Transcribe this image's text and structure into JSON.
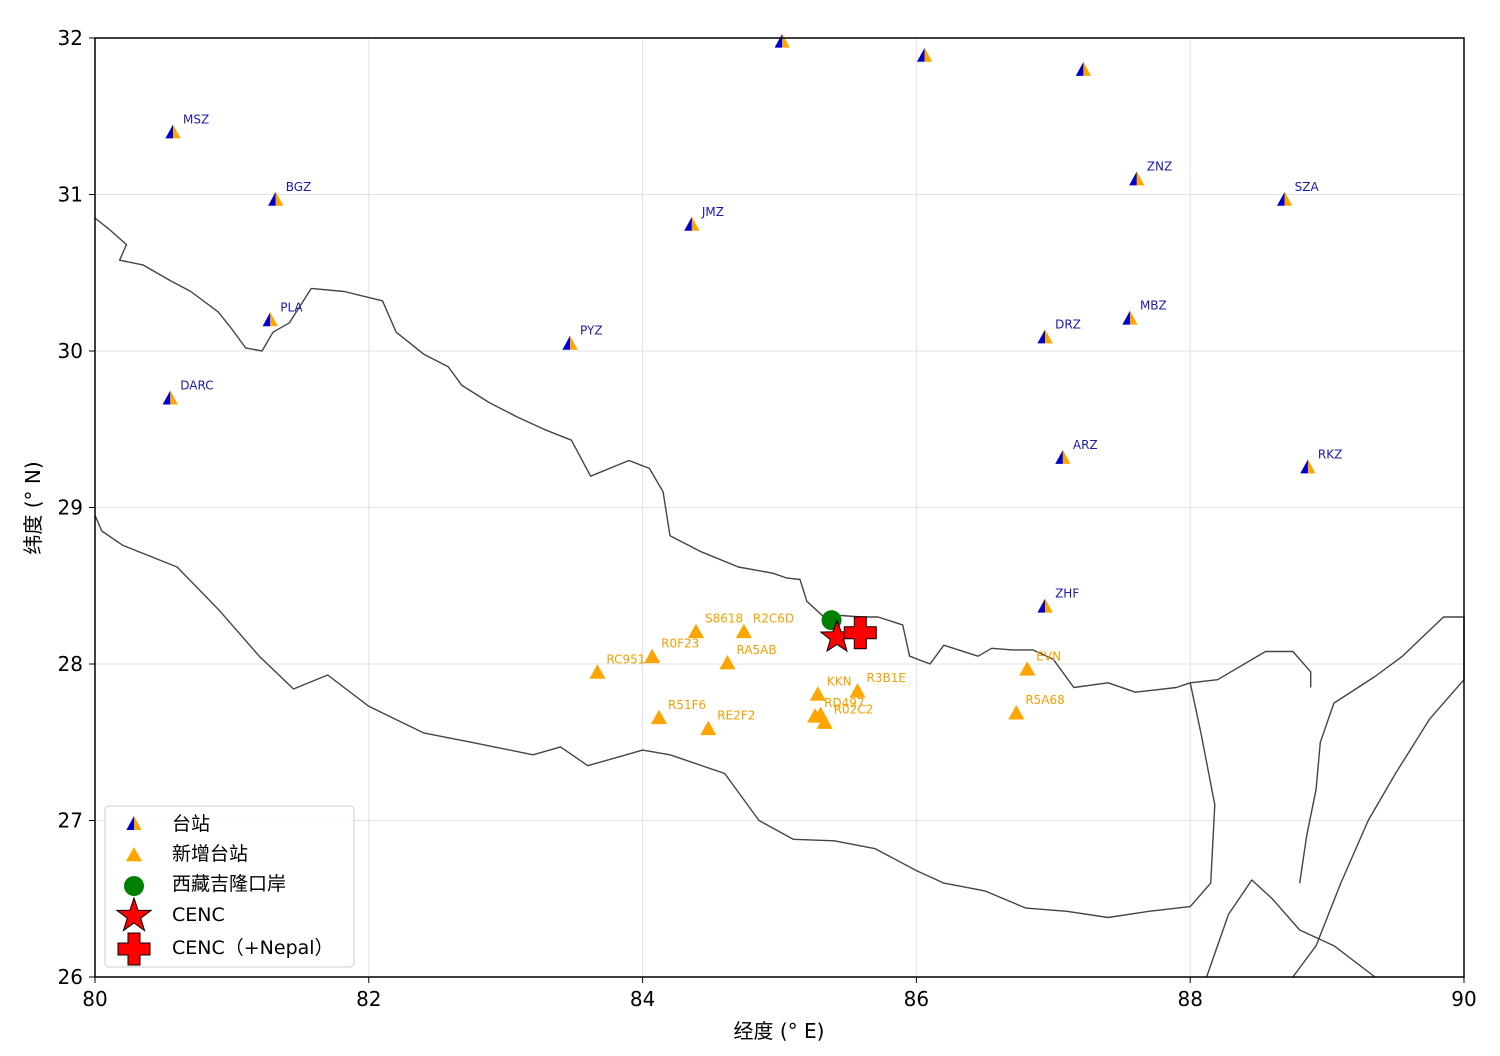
{
  "axes": {
    "xlabel": "经度 (° E)",
    "ylabel": "纬度 (° N)",
    "xlim": [
      80,
      90
    ],
    "ylim": [
      26,
      32
    ],
    "xticks": [
      "80",
      "82",
      "84",
      "86",
      "88",
      "90"
    ],
    "yticks": [
      "26",
      "27",
      "28",
      "29",
      "30",
      "31",
      "32"
    ],
    "grid": true
  },
  "colors": {
    "old_station_left": "#0000cc",
    "old_station_right": "#ffa500",
    "new_station": "#ffa500",
    "port": "#008000",
    "cenc": "#ff0000",
    "cenc_nepal": "#ff0000",
    "border": "#444444",
    "old_label": "#1a1aaa",
    "new_label": "#f5a000"
  },
  "legend": {
    "placement": "lower-left",
    "items": [
      "台站",
      "新增台站",
      "西藏吉隆口岸",
      "CENC",
      "CENC（+Nepal）"
    ]
  },
  "chart_data": {
    "type": "scatter",
    "series": [
      {
        "name": "台站",
        "marker": "half-triangle",
        "points": [
          {
            "label": "MSZ",
            "lon": 80.57,
            "lat": 31.39
          },
          {
            "label": "BGZ",
            "lon": 81.32,
            "lat": 30.96
          },
          {
            "label": "JMZ",
            "lon": 84.36,
            "lat": 30.8
          },
          {
            "label": "PLA",
            "lon": 81.28,
            "lat": 30.19
          },
          {
            "label": "PYZ",
            "lon": 83.47,
            "lat": 30.04
          },
          {
            "label": "DARC",
            "lon": 80.55,
            "lat": 29.69
          },
          {
            "label": "ZNZ",
            "lon": 87.61,
            "lat": 31.09
          },
          {
            "label": "SZA",
            "lon": 88.69,
            "lat": 30.96
          },
          {
            "label": "MBZ",
            "lon": 87.56,
            "lat": 30.2
          },
          {
            "label": "DRZ",
            "lon": 86.94,
            "lat": 30.08
          },
          {
            "label": "ARZ",
            "lon": 87.07,
            "lat": 29.31
          },
          {
            "label": "RKZ",
            "lon": 88.86,
            "lat": 29.25
          },
          {
            "label": "ZHF",
            "lon": 86.94,
            "lat": 28.36
          },
          {
            "label": "",
            "lon": 85.02,
            "lat": 31.97
          },
          {
            "label": "",
            "lon": 86.06,
            "lat": 31.88
          },
          {
            "label": "",
            "lon": 87.22,
            "lat": 31.79
          }
        ]
      },
      {
        "name": "新增台站",
        "marker": "triangle",
        "points": [
          {
            "label": "S8618",
            "lon": 84.39,
            "lat": 28.2
          },
          {
            "label": "R2C6D",
            "lon": 84.74,
            "lat": 28.2
          },
          {
            "label": "R0F23",
            "lon": 84.07,
            "lat": 28.04
          },
          {
            "label": "RC951",
            "lon": 83.67,
            "lat": 27.94
          },
          {
            "label": "RA5AB",
            "lon": 84.62,
            "lat": 28.0
          },
          {
            "label": "KKN",
            "lon": 85.28,
            "lat": 27.8
          },
          {
            "label": "R3B1E",
            "lon": 85.57,
            "lat": 27.82
          },
          {
            "label": "R51F6",
            "lon": 84.12,
            "lat": 27.65
          },
          {
            "label": "RE2F2",
            "lon": 84.48,
            "lat": 27.58
          },
          {
            "label": "RD497",
            "lon": 85.26,
            "lat": 27.66
          },
          {
            "label": "R02C2",
            "lon": 85.33,
            "lat": 27.62
          },
          {
            "label": "",
            "lon": 85.3,
            "lat": 27.67
          },
          {
            "label": "EVN",
            "lon": 86.81,
            "lat": 27.96
          },
          {
            "label": "R5A68",
            "lon": 86.73,
            "lat": 27.68
          }
        ]
      },
      {
        "name": "西藏吉隆口岸",
        "marker": "circle",
        "points": [
          {
            "label": "",
            "lon": 85.38,
            "lat": 28.28
          }
        ]
      },
      {
        "name": "CENC",
        "marker": "star",
        "points": [
          {
            "label": "",
            "lon": 85.42,
            "lat": 28.17
          }
        ]
      },
      {
        "name": "CENC（+Nepal）",
        "marker": "cross",
        "points": [
          {
            "label": "",
            "lon": 85.59,
            "lat": 28.2
          }
        ]
      }
    ],
    "borders": [
      {
        "name": "china-nepal-india-border",
        "coords": [
          [
            80.0,
            30.85
          ],
          [
            80.1,
            30.78
          ],
          [
            80.23,
            30.68
          ],
          [
            80.18,
            30.58
          ],
          [
            80.35,
            30.55
          ],
          [
            80.55,
            30.45
          ],
          [
            80.7,
            30.38
          ],
          [
            80.9,
            30.25
          ],
          [
            81.0,
            30.14
          ],
          [
            81.1,
            30.02
          ],
          [
            81.22,
            30.0
          ],
          [
            81.3,
            30.12
          ],
          [
            81.42,
            30.18
          ],
          [
            81.58,
            30.4
          ],
          [
            81.82,
            30.38
          ],
          [
            82.1,
            30.32
          ],
          [
            82.2,
            30.12
          ],
          [
            82.4,
            29.98
          ],
          [
            82.58,
            29.9
          ],
          [
            82.68,
            29.78
          ],
          [
            82.88,
            29.67
          ],
          [
            83.08,
            29.58
          ],
          [
            83.28,
            29.5
          ],
          [
            83.48,
            29.43
          ],
          [
            83.62,
            29.2
          ],
          [
            83.9,
            29.3
          ],
          [
            84.05,
            29.25
          ],
          [
            84.15,
            29.1
          ],
          [
            84.2,
            28.82
          ],
          [
            84.42,
            28.72
          ],
          [
            84.7,
            28.62
          ],
          [
            84.95,
            28.58
          ],
          [
            85.05,
            28.55
          ],
          [
            85.15,
            28.54
          ],
          [
            85.2,
            28.4
          ],
          [
            85.35,
            28.28
          ],
          [
            85.45,
            28.31
          ],
          [
            85.6,
            28.3
          ],
          [
            85.72,
            28.3
          ],
          [
            85.9,
            28.25
          ],
          [
            85.95,
            28.05
          ],
          [
            86.1,
            28.0
          ],
          [
            86.2,
            28.12
          ],
          [
            86.45,
            28.05
          ],
          [
            86.55,
            28.1
          ],
          [
            86.7,
            28.09
          ],
          [
            86.85,
            28.09
          ],
          [
            87.0,
            28.03
          ],
          [
            87.15,
            27.85
          ],
          [
            87.4,
            27.88
          ],
          [
            87.6,
            27.82
          ],
          [
            87.9,
            27.85
          ],
          [
            88.0,
            27.88
          ],
          [
            88.08,
            27.55
          ],
          [
            88.18,
            27.1
          ],
          [
            88.15,
            26.6
          ],
          [
            88.0,
            26.45
          ],
          [
            87.7,
            26.42
          ],
          [
            87.4,
            26.38
          ],
          [
            87.1,
            26.42
          ],
          [
            86.8,
            26.44
          ],
          [
            86.5,
            26.55
          ],
          [
            86.2,
            26.6
          ],
          [
            86.0,
            26.68
          ],
          [
            85.7,
            26.82
          ],
          [
            85.4,
            26.87
          ],
          [
            85.1,
            26.88
          ],
          [
            84.85,
            27.0
          ],
          [
            84.6,
            27.3
          ],
          [
            84.2,
            27.42
          ],
          [
            84.0,
            27.45
          ],
          [
            83.6,
            27.35
          ],
          [
            83.4,
            27.47
          ],
          [
            83.2,
            27.42
          ],
          [
            82.75,
            27.5
          ],
          [
            82.4,
            27.56
          ],
          [
            82.0,
            27.73
          ],
          [
            81.7,
            27.93
          ],
          [
            81.45,
            27.84
          ],
          [
            81.2,
            28.05
          ],
          [
            80.9,
            28.35
          ],
          [
            80.6,
            28.62
          ],
          [
            80.2,
            28.76
          ],
          [
            80.05,
            28.85
          ],
          [
            80.0,
            28.95
          ]
        ]
      },
      {
        "name": "bhutan-border",
        "coords": [
          [
            88.75,
            26.0
          ],
          [
            88.92,
            26.2
          ],
          [
            89.1,
            26.6
          ],
          [
            89.3,
            27.0
          ],
          [
            89.5,
            27.3
          ],
          [
            89.75,
            27.65
          ],
          [
            90.0,
            27.9
          ],
          [
            90.0,
            28.3
          ],
          [
            89.85,
            28.3
          ],
          [
            89.55,
            28.05
          ],
          [
            89.35,
            27.92
          ],
          [
            89.05,
            27.75
          ],
          [
            88.95,
            27.5
          ],
          [
            88.92,
            27.2
          ],
          [
            88.85,
            26.9
          ],
          [
            88.8,
            26.6
          ]
        ]
      },
      {
        "name": "sikkim-border",
        "coords": [
          [
            88.0,
            27.88
          ],
          [
            88.2,
            27.9
          ],
          [
            88.55,
            28.08
          ],
          [
            88.75,
            28.08
          ],
          [
            88.88,
            27.95
          ],
          [
            88.88,
            27.85
          ]
        ]
      },
      {
        "name": "bangladesh-border",
        "coords": [
          [
            88.12,
            26.0
          ],
          [
            88.28,
            26.4
          ],
          [
            88.45,
            26.62
          ],
          [
            88.6,
            26.5
          ],
          [
            88.8,
            26.3
          ],
          [
            89.05,
            26.2
          ],
          [
            89.35,
            26.0
          ]
        ]
      }
    ]
  }
}
